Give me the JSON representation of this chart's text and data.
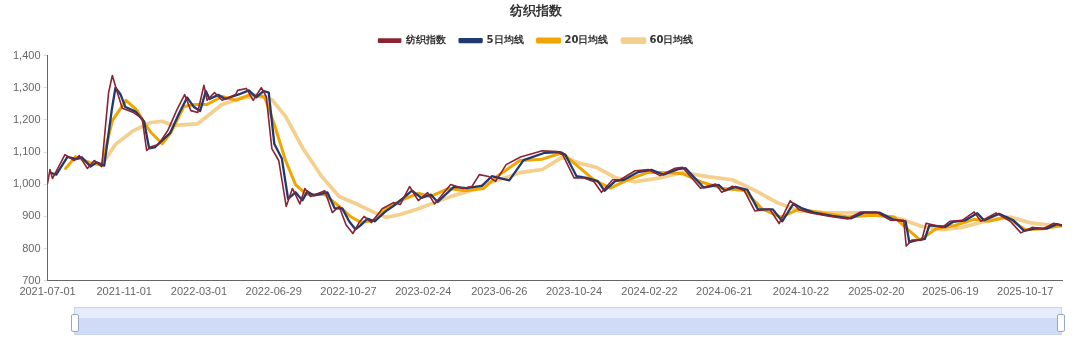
{
  "chart_data": {
    "type": "line",
    "title": "纺织指数",
    "legend": "top",
    "grid": false,
    "marker": "none",
    "line_style": "solid",
    "xlim": [
      "2021-07-01",
      "2025-12-15"
    ],
    "xticks": [
      "2021-07-01",
      "2021-11-01",
      "2022-03-01",
      "2022-06-29",
      "2022-10-27",
      "2023-02-24",
      "2023-06-26",
      "2023-10-24",
      "2024-02-22",
      "2024-06-21",
      "2024-10-22",
      "2025-02-20",
      "2025-06-19",
      "2025-10-17"
    ],
    "ylim": [
      700,
      1400
    ],
    "yticks": [
      {
        "value": 700,
        "label": "700"
      },
      {
        "value": 800,
        "label": "800"
      },
      {
        "value": 900,
        "label": "900"
      },
      {
        "value": 1000,
        "label": "1,000"
      },
      {
        "value": 1100,
        "label": "1,100"
      },
      {
        "value": 1200,
        "label": "1,200"
      },
      {
        "value": 1300,
        "label": "1,300"
      },
      {
        "value": 1400,
        "label": "1,400"
      }
    ],
    "series": [
      {
        "name": "纺织指数",
        "color": "#8b2332",
        "x": [
          "2021-07-01",
          "2021-07-05",
          "2021-07-09",
          "2021-07-29",
          "2021-08-13",
          "2021-08-21",
          "2021-09-03",
          "2021-09-14",
          "2021-09-26",
          "2021-10-07",
          "2021-10-13",
          "2021-10-21",
          "2021-10-29",
          "2021-11-16",
          "2021-11-30",
          "2021-12-07",
          "2021-12-14",
          "2021-12-26",
          "2022-01-10",
          "2022-01-24",
          "2022-02-06",
          "2022-02-16",
          "2022-02-27",
          "2022-03-09",
          "2022-03-14",
          "2022-03-26",
          "2022-04-07",
          "2022-04-29",
          "2022-05-02",
          "2022-05-16",
          "2022-05-27",
          "2022-06-09",
          "2022-06-17",
          "2022-06-26",
          "2022-07-07",
          "2022-07-19",
          "2022-07-29",
          "2022-08-10",
          "2022-08-18",
          "2022-08-27",
          "2022-09-19",
          "2022-10-01",
          "2022-10-12",
          "2022-10-23",
          "2022-11-03",
          "2022-11-13",
          "2022-11-21",
          "2022-12-03",
          "2022-12-20",
          "2023-01-07",
          "2023-01-18",
          "2023-02-02",
          "2023-02-16",
          "2023-03-03",
          "2023-03-14",
          "2023-04-09",
          "2023-04-29",
          "2023-05-13",
          "2023-05-25",
          "2023-06-09",
          "2023-06-20",
          "2023-07-07",
          "2023-07-30",
          "2023-09-03",
          "2023-09-27",
          "2023-10-06",
          "2023-10-24",
          "2023-11-08",
          "2023-11-25",
          "2023-12-07",
          "2023-12-25",
          "2024-01-06",
          "2024-01-30",
          "2024-02-20",
          "2024-03-10",
          "2024-04-03",
          "2024-04-15",
          "2024-05-14",
          "2024-06-07",
          "2024-06-17",
          "2024-07-04",
          "2024-07-23",
          "2024-08-09",
          "2024-09-02",
          "2024-09-17",
          "2024-10-05",
          "2024-10-19",
          "2024-11-07",
          "2024-12-06",
          "2025-01-05",
          "2025-01-26",
          "2025-02-20",
          "2025-03-15",
          "2025-04-05",
          "2025-04-09",
          "2025-04-18",
          "2025-05-04",
          "2025-05-11",
          "2025-06-06",
          "2025-06-18",
          "2025-07-08",
          "2025-07-27",
          "2025-08-07",
          "2025-08-31",
          "2025-09-23",
          "2025-10-10",
          "2025-10-28",
          "2025-11-15",
          "2025-12-02",
          "2025-12-14"
        ],
        "values": [
          1003,
          1046,
          1018,
          1092,
          1074,
          1089,
          1049,
          1074,
          1055,
          1285,
          1338,
          1285,
          1236,
          1223,
          1204,
          1105,
          1117,
          1124,
          1167,
          1229,
          1279,
          1229,
          1223,
          1308,
          1261,
          1285,
          1261,
          1279,
          1292,
          1298,
          1261,
          1300,
          1273,
          1111,
          1074,
          931,
          987,
          939,
          987,
          962,
          980,
          912,
          931,
          874,
          847,
          881,
          900,
          881,
          924,
          943,
          937,
          993,
          949,
          974,
          939,
          999,
          987,
          993,
          1030,
          1024,
          1009,
          1061,
          1085,
          1104,
          1102,
          1091,
          1020,
          1020,
          1008,
          975,
          1014,
          1014,
          1042,
          1046,
          1027,
          1050,
          1053,
          988,
          1001,
          975,
          994,
          981,
          917,
          923,
          878,
          949,
          921,
          911,
          901,
          892,
          914,
          914,
          888,
          888,
          808,
          827,
          827,
          879,
          866,
          885,
          888,
          914,
          885,
          911,
          885,
          849,
          866,
          862,
          879,
          872
        ]
      },
      {
        "name": "5日均线",
        "color": "#1f3a6e",
        "x": [
          "2021-07-07",
          "2021-07-15",
          "2021-08-02",
          "2021-08-16",
          "2021-08-25",
          "2021-09-08",
          "2021-09-18",
          "2021-09-30",
          "2021-10-12",
          "2021-10-18",
          "2021-10-26",
          "2021-11-03",
          "2021-11-20",
          "2021-12-03",
          "2021-12-11",
          "2021-12-20",
          "2022-01-14",
          "2022-01-28",
          "2022-02-10",
          "2022-02-21",
          "2022-03-03",
          "2022-03-12",
          "2022-03-18",
          "2022-04-01",
          "2022-04-12",
          "2022-05-05",
          "2022-05-20",
          "2022-06-01",
          "2022-06-13",
          "2022-06-21",
          "2022-06-30",
          "2022-07-12",
          "2022-07-22",
          "2022-08-03",
          "2022-08-14",
          "2022-08-22",
          "2022-09-01",
          "2022-09-23",
          "2022-10-05",
          "2022-10-17",
          "2022-10-28",
          "2022-11-07",
          "2022-11-17",
          "2022-11-26",
          "2022-12-08",
          "2022-12-25",
          "2023-01-11",
          "2023-02-06",
          "2023-02-21",
          "2023-03-08",
          "2023-03-19",
          "2023-04-14",
          "2023-05-04",
          "2023-05-29",
          "2023-06-14",
          "2023-06-25",
          "2023-07-12",
          "2023-08-04",
          "2023-09-07",
          "2023-10-01",
          "2023-10-10",
          "2023-10-28",
          "2023-11-13",
          "2023-12-01",
          "2023-12-12",
          "2023-12-29",
          "2024-01-12",
          "2024-02-04",
          "2024-02-25",
          "2024-03-15",
          "2024-04-08",
          "2024-04-20",
          "2024-05-19",
          "2024-06-12",
          "2024-06-22",
          "2024-07-09",
          "2024-07-28",
          "2024-08-14",
          "2024-09-07",
          "2024-09-22",
          "2024-10-10",
          "2024-10-24",
          "2024-11-12",
          "2024-12-11",
          "2025-01-10",
          "2025-01-31",
          "2025-02-25",
          "2025-03-20",
          "2025-04-08",
          "2025-04-14",
          "2025-04-23",
          "2025-05-09",
          "2025-05-16",
          "2025-06-11",
          "2025-06-23",
          "2025-07-13",
          "2025-08-01",
          "2025-08-12",
          "2025-09-05",
          "2025-09-28",
          "2025-10-15",
          "2025-11-02",
          "2025-11-20",
          "2025-12-07",
          "2025-12-15"
        ],
        "values": [
          1035,
          1030,
          1085,
          1078,
          1084,
          1055,
          1068,
          1058,
          1230,
          1300,
          1280,
          1240,
          1225,
          1195,
          1112,
          1115,
          1160,
          1220,
          1270,
          1240,
          1228,
          1290,
          1265,
          1278,
          1265,
          1280,
          1292,
          1270,
          1290,
          1285,
          1125,
          1080,
          955,
          975,
          950,
          978,
          965,
          975,
          925,
          925,
          885,
          860,
          875,
          893,
          885,
          915,
          938,
          980,
          958,
          968,
          945,
          992,
          988,
          995,
          1025,
          1020,
          1012,
          1075,
          1098,
          1100,
          1092,
          1025,
          1020,
          1010,
          980,
          1010,
          1014,
          1038,
          1045,
          1030,
          1047,
          1050,
          990,
          998,
          980,
          992,
          983,
          922,
          922,
          885,
          940,
          925,
          912,
          902,
          894,
          912,
          912,
          890,
          885,
          820,
          825,
          830,
          872,
          868,
          883,
          888,
          910,
          888,
          908,
          888,
          855,
          863,
          862,
          876,
          872
        ]
      },
      {
        "name": "20日均线",
        "color": "#f0a500",
        "x": [
          "2021-07-30",
          "2021-08-15",
          "2021-09-07",
          "2021-09-26",
          "2021-10-13",
          "2021-11-04",
          "2021-11-22",
          "2021-12-01",
          "2021-12-14",
          "2022-01-01",
          "2022-01-15",
          "2022-02-05",
          "2022-02-22",
          "2022-03-14",
          "2022-04-07",
          "2022-04-29",
          "2022-05-22",
          "2022-06-14",
          "2022-06-30",
          "2022-07-18",
          "2022-08-03",
          "2022-08-21",
          "2022-09-19",
          "2022-10-12",
          "2022-10-30",
          "2022-11-16",
          "2022-12-05",
          "2022-12-26",
          "2023-01-18",
          "2023-02-16",
          "2023-03-07",
          "2023-04-06",
          "2023-05-02",
          "2023-06-01",
          "2023-06-22",
          "2023-07-29",
          "2023-09-03",
          "2023-10-05",
          "2023-10-24",
          "2023-11-25",
          "2023-12-21",
          "2024-01-18",
          "2024-02-20",
          "2024-03-22",
          "2024-04-15",
          "2024-05-14",
          "2024-06-17",
          "2024-07-23",
          "2024-08-21",
          "2024-09-20",
          "2024-10-19",
          "2024-11-16",
          "2025-01-05",
          "2025-02-14",
          "2025-03-21",
          "2025-04-12",
          "2025-05-01",
          "2025-05-27",
          "2025-06-26",
          "2025-07-27",
          "2025-08-19",
          "2025-09-17",
          "2025-10-17",
          "2025-11-15",
          "2025-12-14"
        ],
        "values": [
          1049,
          1086,
          1067,
          1059,
          1198,
          1261,
          1229,
          1198,
          1161,
          1126,
          1161,
          1242,
          1248,
          1248,
          1273,
          1261,
          1279,
          1273,
          1186,
          1074,
          999,
          968,
          968,
          931,
          900,
          881,
          887,
          924,
          949,
          972,
          962,
          987,
          980,
          987,
          1024,
          1074,
          1078,
          1098,
          1066,
          1014,
          988,
          1014,
          1037,
          1037,
          1033,
          1008,
          988,
          981,
          923,
          898,
          923,
          914,
          898,
          904,
          898,
          859,
          827,
          862,
          872,
          891,
          885,
          898,
          859,
          862,
          872
        ]
      },
      {
        "name": "60日均线",
        "color": "#f5cf8e",
        "x": [
          "2021-09-26",
          "2021-10-18",
          "2021-11-16",
          "2021-12-14",
          "2022-01-01",
          "2022-01-18",
          "2022-02-27",
          "2022-03-14",
          "2022-04-07",
          "2022-05-05",
          "2022-06-03",
          "2022-06-26",
          "2022-07-18",
          "2022-08-15",
          "2022-09-14",
          "2022-10-12",
          "2022-11-11",
          "2022-12-08",
          "2022-12-26",
          "2023-01-18",
          "2023-02-16",
          "2023-03-14",
          "2023-04-12",
          "2023-05-10",
          "2023-06-09",
          "2023-07-07",
          "2023-07-29",
          "2023-09-03",
          "2023-10-06",
          "2023-11-01",
          "2023-11-28",
          "2023-12-30",
          "2024-01-30",
          "2024-03-10",
          "2024-04-15",
          "2024-05-25",
          "2024-07-04",
          "2024-08-09",
          "2024-09-14",
          "2024-10-19",
          "2024-12-06",
          "2025-01-24",
          "2025-02-27",
          "2025-04-02",
          "2025-05-04",
          "2025-06-06",
          "2025-07-08",
          "2025-08-19",
          "2025-09-23",
          "2025-10-28",
          "2025-12-14"
        ],
        "values": [
          1061,
          1124,
          1167,
          1192,
          1196,
          1183,
          1188,
          1211,
          1248,
          1267,
          1275,
          1263,
          1211,
          1111,
          1024,
          962,
          937,
          912,
          897,
          906,
          924,
          943,
          964,
          980,
          1005,
          1021,
          1036,
          1046,
          1085,
          1066,
          1053,
          1020,
          1008,
          1020,
          1037,
          1024,
          1014,
          981,
          943,
          917,
          911,
          911,
          904,
          891,
          869,
          859,
          866,
          888,
          898,
          879,
          869
        ]
      }
    ]
  }
}
